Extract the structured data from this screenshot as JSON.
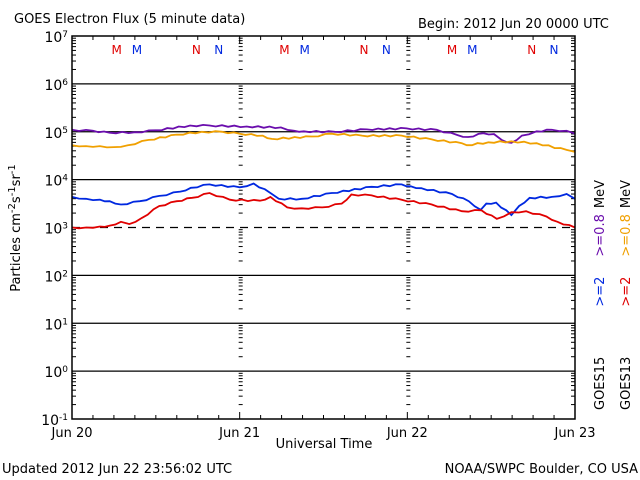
{
  "header": {
    "title": "GOES Electron Flux (5 minute data)",
    "begin": "Begin: 2012 Jun 20 0000 UTC"
  },
  "footer": {
    "updated": "Updated 2012 Jun 22 23:56:02 UTC",
    "credit": "NOAA/SWPC Boulder, CO USA"
  },
  "colors": {
    "goes15_08": "#6a0dad",
    "goes13_08": "#f0a000",
    "goes15_2": "#0028e0",
    "goes13_2": "#e00000",
    "grid": "#000000"
  },
  "legend": {
    "col1": {
      "sat": "GOES15",
      "e2": ">=2",
      "e08": ">=0.8",
      "unit": "MeV"
    },
    "col2": {
      "sat": "GOES13",
      "e2": ">=2",
      "e08": ">=0.8",
      "unit": "MeV"
    }
  },
  "markers": [
    {
      "label": "M",
      "color": "#e00000",
      "hour": 6.4
    },
    {
      "label": "M",
      "color": "#0028e0",
      "hour": 9.3
    },
    {
      "label": "N",
      "color": "#e00000",
      "hour": 17.8
    },
    {
      "label": "N",
      "color": "#0028e0",
      "hour": 21.0
    },
    {
      "label": "M",
      "color": "#e00000",
      "hour": 30.4
    },
    {
      "label": "M",
      "color": "#0028e0",
      "hour": 33.3
    },
    {
      "label": "N",
      "color": "#e00000",
      "hour": 41.8
    },
    {
      "label": "N",
      "color": "#0028e0",
      "hour": 45.0
    },
    {
      "label": "M",
      "color": "#e00000",
      "hour": 54.4
    },
    {
      "label": "M",
      "color": "#0028e0",
      "hour": 57.3
    },
    {
      "label": "N",
      "color": "#e00000",
      "hour": 65.8
    },
    {
      "label": "N",
      "color": "#0028e0",
      "hour": 69.0
    }
  ],
  "chart_data": {
    "type": "line",
    "title": "GOES Electron Flux (5 minute data)",
    "xlabel": "Universal Time",
    "ylabel": "Particles cm-2s-1sr-1",
    "xlim_hours": [
      0,
      72
    ],
    "ylim_log10": [
      -1,
      7
    ],
    "yscale": "log",
    "x_ticks": [
      {
        "hour": 0,
        "label": "Jun 20"
      },
      {
        "hour": 24,
        "label": "Jun 21"
      },
      {
        "hour": 48,
        "label": "Jun 22"
      },
      {
        "hour": 72,
        "label": "Jun 23"
      }
    ],
    "y_ticks": [
      {
        "exp": 7,
        "base": "10",
        "sup": "7"
      },
      {
        "exp": 6,
        "base": "10",
        "sup": "6"
      },
      {
        "exp": 5,
        "base": "10",
        "sup": "5"
      },
      {
        "exp": 4,
        "base": "10",
        "sup": "4"
      },
      {
        "exp": 3,
        "base": "10",
        "sup": "3"
      },
      {
        "exp": 2,
        "base": "10",
        "sup": "2"
      },
      {
        "exp": 1,
        "base": "10",
        "sup": "1"
      },
      {
        "exp": 0,
        "base": "10",
        "sup": "0"
      },
      {
        "exp": -1,
        "base": "10",
        "sup": "-1"
      }
    ],
    "solid_gridlines_log10": [
      6,
      5,
      4,
      2,
      1,
      0
    ],
    "dashed_threshold_log10": 3,
    "day_boundaries_hours": [
      24,
      48
    ],
    "series": [
      {
        "name": "GOES15 >=0.8 MeV",
        "color": "#6a0dad",
        "hours": [
          0,
          3,
          5.4,
          9,
          12,
          16.9,
          19.7,
          25,
          29.9,
          31.8,
          33.2,
          37.6,
          42.2,
          47.9,
          52.2,
          55.2,
          56.7,
          58.9,
          60.4,
          61.5,
          62.9,
          64.4,
          66.5,
          68.7,
          70.8,
          72
        ],
        "log10_values": [
          5.04,
          5.02,
          4.98,
          4.99,
          5.03,
          5.13,
          5.13,
          5.11,
          5.09,
          5.02,
          5.01,
          5.0,
          5.05,
          5.07,
          5.04,
          4.93,
          4.89,
          4.97,
          4.95,
          4.83,
          4.77,
          4.92,
          5.01,
          5.04,
          5.02,
          4.96
        ]
      },
      {
        "name": "GOES13 >=0.8 MeV",
        "color": "#f0a000",
        "hours": [
          0,
          2,
          4,
          6,
          8,
          11,
          15,
          18.6,
          21.5,
          24,
          27.3,
          28.6,
          34.3,
          37.2,
          41.5,
          47.2,
          51.5,
          55.8,
          56.5,
          59.6,
          62.9,
          66.5,
          70.8,
          72
        ],
        "log10_values": [
          4.72,
          4.7,
          4.7,
          4.68,
          4.72,
          4.83,
          4.94,
          5.0,
          5.0,
          4.96,
          4.92,
          4.85,
          4.9,
          4.96,
          4.92,
          4.92,
          4.84,
          4.76,
          4.72,
          4.78,
          4.8,
          4.76,
          4.62,
          4.58
        ]
      },
      {
        "name": "GOES15 >=2 MeV",
        "color": "#0028e0",
        "hours": [
          0,
          2,
          4,
          5.4,
          7,
          9.7,
          12.5,
          15.5,
          17,
          19.7,
          24,
          26,
          28.4,
          29.6,
          32.9,
          37.2,
          42.9,
          47.2,
          48.5,
          50,
          54.4,
          56.8,
          58.5,
          59.3,
          60.7,
          62.9,
          64,
          65.5,
          68.7,
          70.8,
          72
        ],
        "log10_values": [
          3.64,
          3.6,
          3.58,
          3.55,
          3.48,
          3.55,
          3.66,
          3.75,
          3.83,
          3.9,
          3.84,
          3.92,
          3.72,
          3.6,
          3.6,
          3.72,
          3.85,
          3.9,
          3.86,
          3.82,
          3.7,
          3.55,
          3.37,
          3.5,
          3.52,
          3.26,
          3.45,
          3.62,
          3.64,
          3.7,
          3.6
        ]
      },
      {
        "name": "GOES13 >=2 MeV",
        "color": "#e00000",
        "hours": [
          0,
          2,
          4,
          5.4,
          7,
          8.2,
          10,
          12.5,
          15,
          17.2,
          19.7,
          22.6,
          26.9,
          28.4,
          30.8,
          32.9,
          35.8,
          38.6,
          40,
          42.9,
          47.2,
          51.5,
          55.8,
          58.6,
          60.8,
          62.9,
          65,
          67.9,
          69.5,
          72
        ],
        "log10_values": [
          3.0,
          3.0,
          3.02,
          3.04,
          3.12,
          3.07,
          3.2,
          3.45,
          3.55,
          3.62,
          3.72,
          3.58,
          3.56,
          3.64,
          3.42,
          3.4,
          3.42,
          3.5,
          3.69,
          3.67,
          3.58,
          3.48,
          3.34,
          3.36,
          3.18,
          3.32,
          3.34,
          3.23,
          3.12,
          3.0
        ]
      }
    ]
  }
}
